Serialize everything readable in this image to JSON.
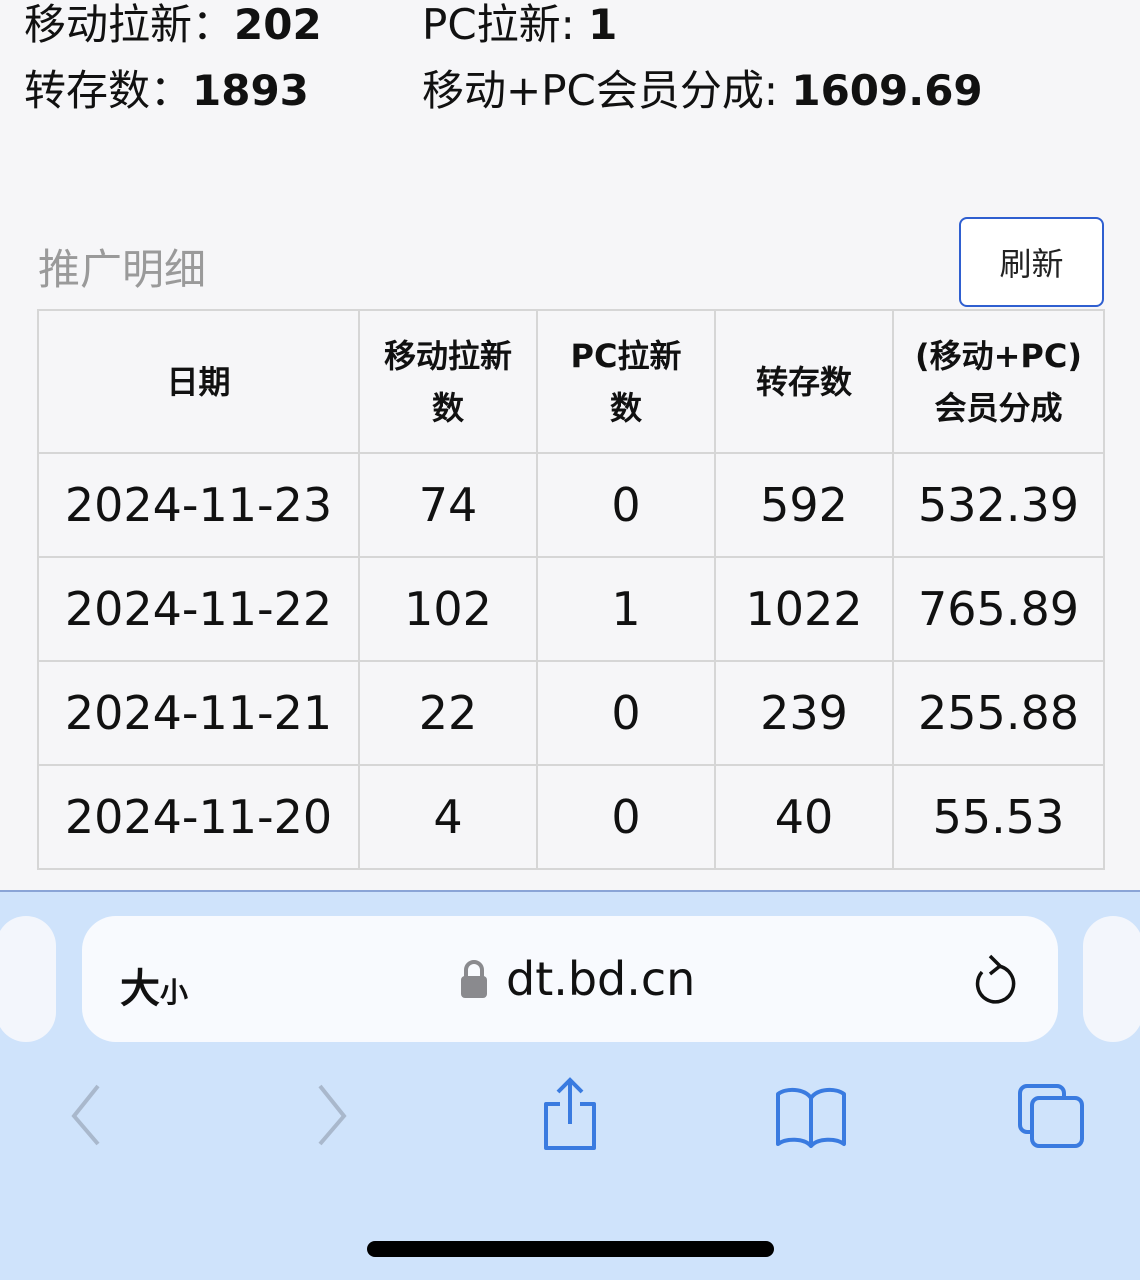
{
  "summary": {
    "mobile_new_label": "移动拉新：",
    "mobile_new_value": "202",
    "pc_new_label": "PC拉新: ",
    "pc_new_value": "1",
    "saves_label": "转存数：",
    "saves_value": "1893",
    "share_label": "移动+PC会员分成: ",
    "share_value": "1609.69"
  },
  "section": {
    "title": "推广明细",
    "refresh_label": "刷新"
  },
  "table": {
    "headers": [
      "日期",
      "移动拉新数",
      "PC拉新数",
      "转存数",
      "(移动+PC)会员分成"
    ],
    "rows": [
      [
        "2024-11-23",
        "74",
        "0",
        "592",
        "532.39"
      ],
      [
        "2024-11-22",
        "102",
        "1",
        "1022",
        "765.89"
      ],
      [
        "2024-11-21",
        "22",
        "0",
        "239",
        "255.88"
      ],
      [
        "2024-11-20",
        "4",
        "0",
        "40",
        "55.53"
      ]
    ]
  },
  "browser": {
    "size_label_big": "大",
    "size_label_small": "小",
    "url": "dt.bd.cn",
    "accent": "#3a7be0",
    "icons": [
      "lock-icon",
      "reload-icon",
      "back-icon",
      "forward-icon",
      "share-icon",
      "bookmarks-icon",
      "tabs-icon"
    ]
  }
}
